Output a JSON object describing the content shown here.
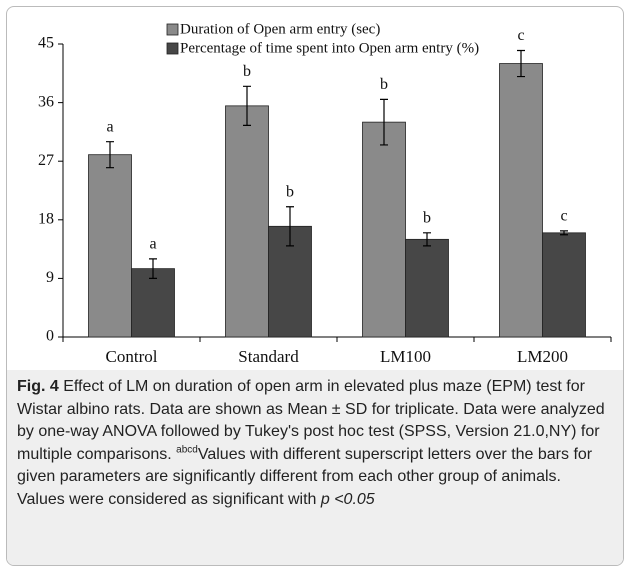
{
  "chart_data": {
    "type": "bar",
    "categories": [
      "Control",
      "Standard",
      "LM100",
      "LM200"
    ],
    "series": [
      {
        "name": "Duration of Open arm entry (sec)",
        "color": "#8a8a8a",
        "values": [
          28,
          35.5,
          33,
          42
        ],
        "errors": [
          2,
          3,
          3.5,
          2
        ],
        "letters": [
          "a",
          "b",
          "b",
          "c"
        ]
      },
      {
        "name": "Percentage of time spent into Open arm entry (%)",
        "color": "#474747",
        "values": [
          10.5,
          17,
          15,
          16
        ],
        "errors": [
          1.5,
          3,
          1,
          0.3
        ],
        "letters": [
          "a",
          "b",
          "b",
          "c"
        ]
      }
    ],
    "ylim": [
      0,
      45
    ],
    "yticks": [
      0,
      9,
      18,
      27,
      36,
      45
    ],
    "grid": false,
    "legend": "top-left"
  },
  "caption": {
    "label": "Fig. 4",
    "text": " Effect of LM on duration of open arm in elevated plus maze (EPM) test for Wistar albino rats. Data are shown as Mean ± SD for triplicate. Data were analyzed by one-way ANOVA followed by Tukey's post hoc test (SPSS, Version 21.0,NY) for multiple comparisons. ",
    "superscript": "abcd",
    "text2": "Values with different superscript letters over the bars for given parameters are significantly different from each other group of animals. Values were considered as significant with ",
    "italic": "p <0.05"
  }
}
